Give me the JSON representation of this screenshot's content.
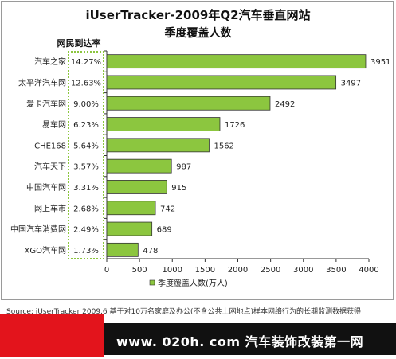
{
  "chart_data": {
    "type": "bar",
    "title": "iUserTracker-2009年Q2汽车垂直网站",
    "subtitle": "季度覆盖人数",
    "reach_header": "网民到达率",
    "categories": [
      "汽车之家",
      "太平洋汽车网",
      "爱卡汽车网",
      "易车网",
      "CHE168",
      "汽车天下",
      "中国汽车网",
      "网上车市",
      "中国汽车消费网",
      "XGO汽车网"
    ],
    "reach_rates": [
      "14.27%",
      "12.63%",
      "9.00%",
      "6.23%",
      "5.64%",
      "3.57%",
      "3.31%",
      "2.68%",
      "2.49%",
      "1.73%"
    ],
    "series": [
      {
        "name": "季度覆盖人数(万人)",
        "values": [
          3951,
          3497,
          2492,
          1726,
          1562,
          987,
          915,
          742,
          689,
          478
        ]
      }
    ],
    "xlim": [
      0,
      4000
    ],
    "xticks": [
      0,
      500,
      1000,
      1500,
      2000,
      2500,
      3000,
      3500,
      4000
    ],
    "legend_position": "bottom",
    "grid": false,
    "bar_color": "#8cc63f"
  },
  "footer": {
    "source": "Source: iUserTracker 2009.6 基于对10万名家庭及办公(不含公共上网地点)样本网络行为的长期监测数据获得"
  },
  "banner": {
    "text": "www. 020h. com 汽车装饰改装第一网"
  }
}
